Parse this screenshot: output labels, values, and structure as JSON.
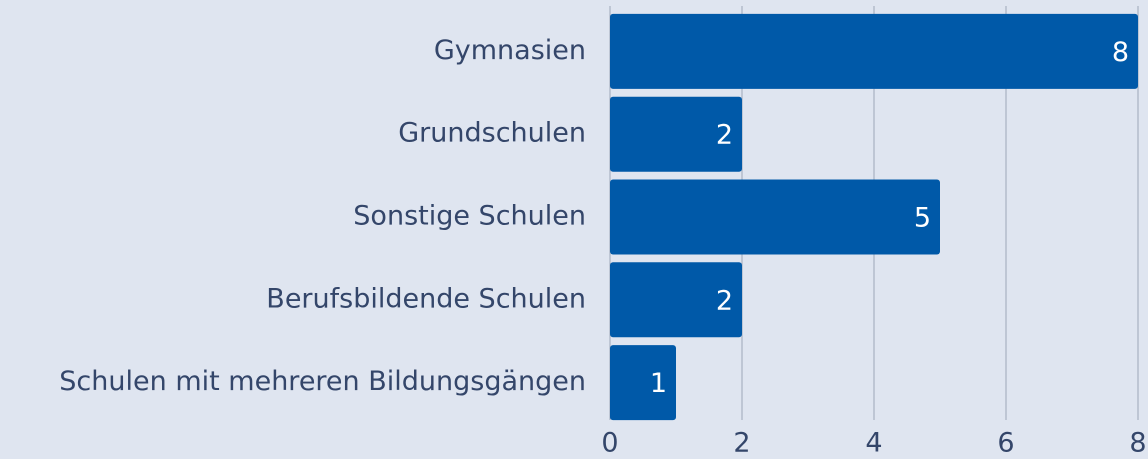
{
  "chart_data": {
    "type": "bar",
    "orientation": "horizontal",
    "categories": [
      "Gymnasien",
      "Grundschulen",
      "Sonstige Schulen",
      "Berufsbildende Schulen",
      "Schulen mit mehreren Bildungsgängen"
    ],
    "values": [
      8,
      2,
      5,
      2,
      1
    ],
    "color": "#0059a8",
    "xlim": [
      0,
      8
    ],
    "xticks": [
      0,
      2,
      4,
      6,
      8
    ],
    "grid": true
  }
}
